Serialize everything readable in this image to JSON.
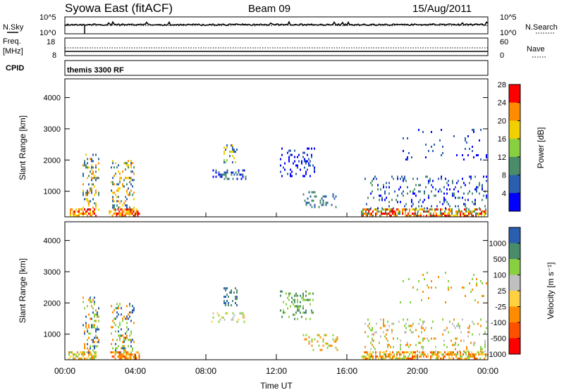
{
  "header": {
    "title": "Syowa East (fitACF)",
    "beam": "Beam 09",
    "date": "15/Aug/2011"
  },
  "noise_panel": {
    "left_label": "N.Sky",
    "left_ticks": [
      "10^5",
      "10^0"
    ],
    "right_ticks": [
      "10^5",
      "10^0"
    ],
    "right_label": "N.Search"
  },
  "freq_panel": {
    "left_label_1": "Freq.",
    "left_label_2": "[MHz]",
    "left_ticks": [
      "18",
      "8"
    ],
    "right_ticks": [
      "60",
      "0"
    ],
    "right_label": "Nave"
  },
  "cpid_panel": {
    "label": "CPID",
    "value": "themis 3300 RF"
  },
  "chart_data": [
    {
      "type": "heatmap",
      "name": "power",
      "ylabel": "Slant Range [km]",
      "xlabel": "",
      "ylim": [
        180,
        4600
      ],
      "yticks": [
        "1000",
        "2000",
        "3000",
        "4000"
      ],
      "colorbar": {
        "label": "Power [dB]",
        "ticks": [
          "4",
          "8",
          "12",
          "16",
          "20",
          "24",
          "28"
        ],
        "colors": [
          "#0000ff",
          "#2a5fb0",
          "#4a8c6a",
          "#88d040",
          "#f0d000",
          "#ff8c00",
          "#ff0000"
        ]
      },
      "regions": [
        {
          "x": [
            0.2,
            1.8
          ],
          "y": [
            200,
            450
          ],
          "density": 0.6,
          "colors": [
            "#ff0000",
            "#ff8c00",
            "#f0d000"
          ]
        },
        {
          "x": [
            1.0,
            1.9
          ],
          "y": [
            400,
            2200
          ],
          "density": 0.25,
          "colors": [
            "#2a5fb0",
            "#4a8c6a",
            "#f0d000",
            "#ff8c00"
          ]
        },
        {
          "x": [
            2.5,
            4.2
          ],
          "y": [
            200,
            450
          ],
          "density": 0.6,
          "colors": [
            "#ff0000",
            "#ff8c00",
            "#f0d000"
          ]
        },
        {
          "x": [
            2.6,
            3.9
          ],
          "y": [
            400,
            2000
          ],
          "density": 0.25,
          "colors": [
            "#ff8c00",
            "#f0d000",
            "#4a8c6a",
            "#2a5fb0"
          ]
        },
        {
          "x": [
            8.3,
            10.3
          ],
          "y": [
            1400,
            1700
          ],
          "density": 0.35,
          "colors": [
            "#2a5fb0",
            "#0000ff",
            "#4a8c6a"
          ]
        },
        {
          "x": [
            9.0,
            9.8
          ],
          "y": [
            1900,
            2500
          ],
          "density": 0.3,
          "colors": [
            "#f0d000",
            "#88d040",
            "#2a5fb0"
          ]
        },
        {
          "x": [
            12.2,
            14.2
          ],
          "y": [
            1500,
            2400
          ],
          "density": 0.22,
          "colors": [
            "#2a5fb0",
            "#0000ff"
          ]
        },
        {
          "x": [
            13.5,
            15.5
          ],
          "y": [
            500,
            1000
          ],
          "density": 0.22,
          "colors": [
            "#2a5fb0",
            "#4a8c6a"
          ]
        },
        {
          "x": [
            16.8,
            23.9
          ],
          "y": [
            200,
            450
          ],
          "density": 0.6,
          "colors": [
            "#ff0000",
            "#ff8c00",
            "#f0d000",
            "#4a8c6a"
          ]
        },
        {
          "x": [
            17.0,
            23.9
          ],
          "y": [
            450,
            1500
          ],
          "density": 0.12,
          "colors": [
            "#2a5fb0",
            "#4a8c6a",
            "#0000ff"
          ]
        },
        {
          "x": [
            19.0,
            23.9
          ],
          "y": [
            2000,
            3000
          ],
          "density": 0.04,
          "colors": [
            "#2a5fb0",
            "#0000ff"
          ]
        }
      ]
    },
    {
      "type": "heatmap",
      "name": "velocity",
      "ylabel": "Slant Range [km]",
      "xlabel": "Time UT",
      "ylim": [
        180,
        4600
      ],
      "yticks": [
        "1000",
        "2000",
        "3000",
        "4000"
      ],
      "xticks": [
        "00:00",
        "04:00",
        "08:00",
        "12:00",
        "16:00",
        "20:00",
        "00:00"
      ],
      "colorbar": {
        "label": "Velocity [m s⁻¹]",
        "ticks": [
          "1000",
          "500",
          "100",
          "25",
          "-25",
          "-100",
          "-500",
          "-1000"
        ],
        "colors": [
          "#2a5fb0",
          "#4a8c6a",
          "#88d040",
          "#c0c0c0",
          "#ffd040",
          "#ff8c00",
          "#ff5000",
          "#ff0000"
        ]
      },
      "regions": [
        {
          "x": [
            0.2,
            1.8
          ],
          "y": [
            200,
            450
          ],
          "density": 0.55,
          "colors": [
            "#ff8c00",
            "#ffd040",
            "#88d040"
          ]
        },
        {
          "x": [
            1.0,
            1.9
          ],
          "y": [
            400,
            2200
          ],
          "density": 0.25,
          "colors": [
            "#2a5fb0",
            "#88d040",
            "#ff8c00"
          ]
        },
        {
          "x": [
            2.5,
            4.2
          ],
          "y": [
            200,
            450
          ],
          "density": 0.55,
          "colors": [
            "#ff8c00",
            "#ffd040",
            "#ff5000"
          ]
        },
        {
          "x": [
            2.6,
            3.9
          ],
          "y": [
            400,
            2000
          ],
          "density": 0.25,
          "colors": [
            "#ff8c00",
            "#88d040",
            "#2a5fb0"
          ]
        },
        {
          "x": [
            8.3,
            10.3
          ],
          "y": [
            1400,
            1700
          ],
          "density": 0.35,
          "colors": [
            "#88d040",
            "#ffd040",
            "#c0c0c0"
          ]
        },
        {
          "x": [
            9.0,
            9.8
          ],
          "y": [
            1900,
            2500
          ],
          "density": 0.3,
          "colors": [
            "#2a5fb0",
            "#4a8c6a"
          ]
        },
        {
          "x": [
            12.2,
            14.2
          ],
          "y": [
            1500,
            2400
          ],
          "density": 0.22,
          "colors": [
            "#4a8c6a",
            "#88d040"
          ]
        },
        {
          "x": [
            13.5,
            15.5
          ],
          "y": [
            500,
            1000
          ],
          "density": 0.22,
          "colors": [
            "#ff8c00",
            "#88d040"
          ]
        },
        {
          "x": [
            16.8,
            23.9
          ],
          "y": [
            200,
            450
          ],
          "density": 0.55,
          "colors": [
            "#ff8c00",
            "#ffd040",
            "#ff5000",
            "#88d040"
          ]
        },
        {
          "x": [
            17.0,
            23.9
          ],
          "y": [
            450,
            1500
          ],
          "density": 0.12,
          "colors": [
            "#ff8c00",
            "#c0c0c0",
            "#88d040"
          ]
        },
        {
          "x": [
            19.0,
            23.9
          ],
          "y": [
            2000,
            3000
          ],
          "density": 0.04,
          "colors": [
            "#ff8c00",
            "#88d040"
          ]
        }
      ]
    }
  ]
}
